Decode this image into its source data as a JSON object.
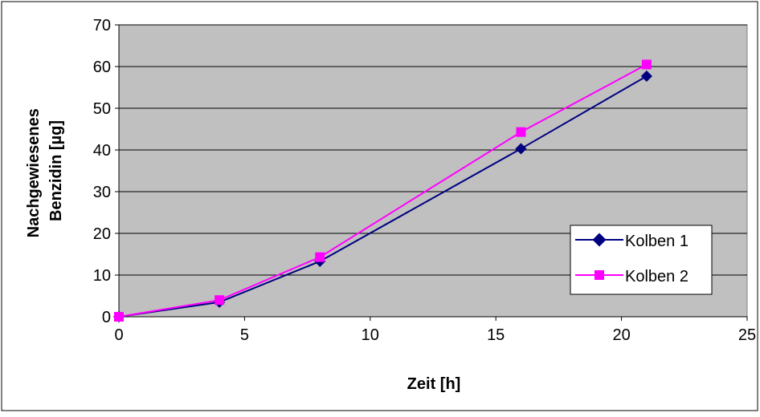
{
  "chart_data": {
    "type": "line",
    "title": "",
    "xlabel": "Zeit [h]",
    "ylabel": [
      "Nachgewiesenes",
      "Benzidin [µg]"
    ],
    "xlim": [
      0,
      25
    ],
    "ylim": [
      0,
      70
    ],
    "xticks": [
      0,
      5,
      10,
      15,
      20,
      25
    ],
    "yticks": [
      0,
      10,
      20,
      30,
      40,
      50,
      60,
      70
    ],
    "grid": "horizontal",
    "legend_position": "right",
    "plot_background": "#C0C0C0",
    "series": [
      {
        "name": "Kolben 1",
        "color": "#000080",
        "marker": "diamond",
        "x": [
          0,
          4,
          8,
          16,
          21
        ],
        "y": [
          0,
          3.5,
          13.3,
          40.3,
          57.7
        ]
      },
      {
        "name": "Kolben 2",
        "color": "#FF00FF",
        "marker": "square",
        "x": [
          0,
          4,
          8,
          16,
          21
        ],
        "y": [
          0,
          4,
          14.3,
          44.3,
          60.5
        ]
      }
    ]
  }
}
